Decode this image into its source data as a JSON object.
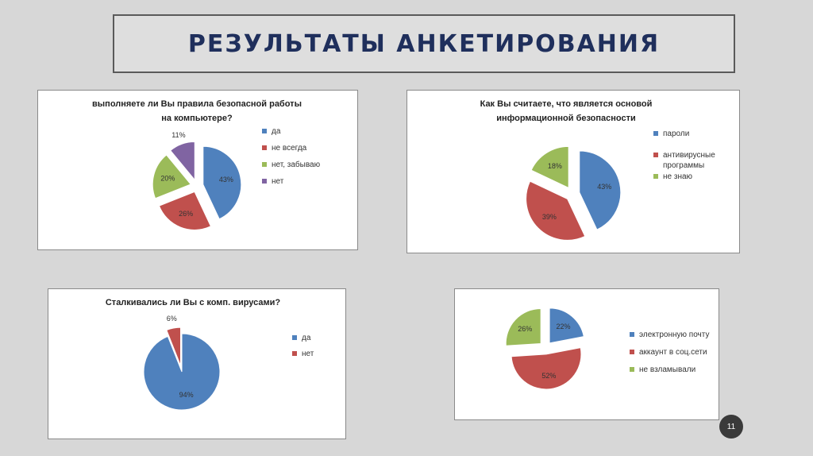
{
  "slide": {
    "title": "РЕЗУЛЬТАТЫ АНКЕТИРОВАНИЯ",
    "page_number": "11"
  },
  "colors": {
    "blue": "#4f81bd",
    "red": "#c0504d",
    "green": "#9bbb59",
    "purple": "#8064a2",
    "title": "#1f2f5c"
  },
  "chart_data": [
    {
      "type": "pie",
      "title_lines": [
        "выполняете ли Вы правила безопасной работы",
        "на компьютере?"
      ],
      "categories": [
        "да",
        "не всегда",
        "нет, забываю",
        "нет"
      ],
      "values": [
        43,
        26,
        20,
        11
      ],
      "labels": [
        "43%",
        "26%",
        "20%",
        "11%"
      ],
      "colors": [
        "#4f81bd",
        "#c0504d",
        "#9bbb59",
        "#8064a2"
      ],
      "legend": "right"
    },
    {
      "type": "pie",
      "title_lines": [
        "Как Вы считаете, что является основой",
        "информационной безопасности"
      ],
      "categories": [
        "пароли",
        "антивирусные программы",
        "не знаю"
      ],
      "legend_lines": [
        [
          "пароли"
        ],
        [
          "антивирусные",
          "программы"
        ],
        [
          "не знаю"
        ]
      ],
      "values": [
        43,
        39,
        18
      ],
      "labels": [
        "43%",
        "39%",
        "18%"
      ],
      "colors": [
        "#4f81bd",
        "#c0504d",
        "#9bbb59"
      ],
      "legend": "right"
    },
    {
      "type": "pie",
      "title_lines": [
        "Сталкивались ли Вы с комп. вирусами?"
      ],
      "categories": [
        "да",
        "нет"
      ],
      "values": [
        94,
        6
      ],
      "labels": [
        "94%",
        "6%"
      ],
      "colors": [
        "#4f81bd",
        "#c0504d"
      ],
      "legend": "right"
    },
    {
      "type": "pie",
      "title_lines": [],
      "categories": [
        "электронную почту",
        "аккаунт в соц.сети",
        "не взламывали"
      ],
      "values": [
        22,
        52,
        26
      ],
      "labels": [
        "22%",
        "52%",
        "26%"
      ],
      "colors": [
        "#4f81bd",
        "#c0504d",
        "#9bbb59"
      ],
      "legend": "right"
    }
  ]
}
